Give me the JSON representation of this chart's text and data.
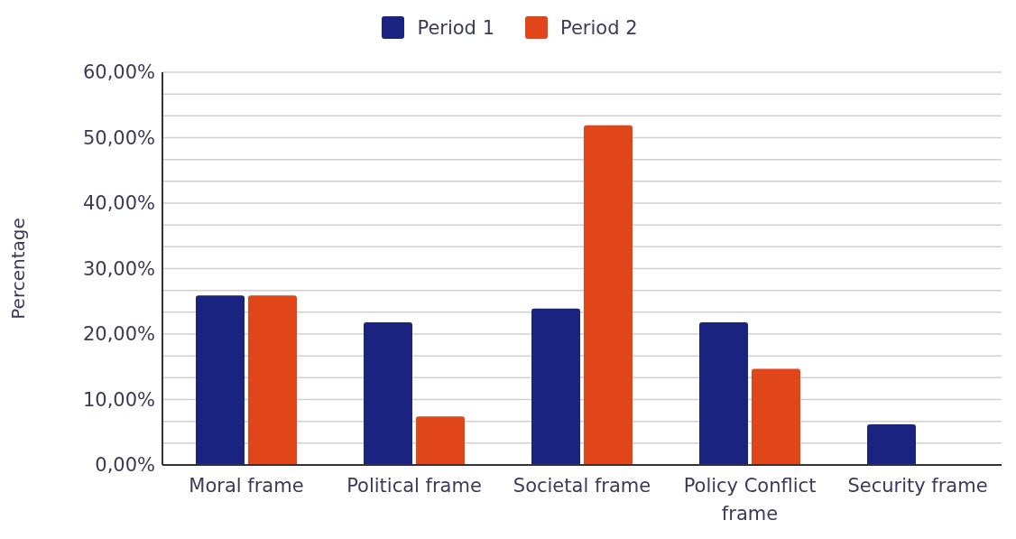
{
  "chart_data": {
    "type": "bar",
    "ylabel": "Percentage",
    "categories": [
      "Moral frame",
      "Political frame",
      "Societal frame",
      "Policy Conflict frame",
      "Security frame"
    ],
    "series": [
      {
        "name": "Period 1",
        "color": "#1b2380",
        "values": [
          25.9,
          21.8,
          23.9,
          21.8,
          6.2
        ]
      },
      {
        "name": "Period 2",
        "color": "#e0461a",
        "values": [
          25.9,
          7.4,
          51.9,
          14.7,
          0
        ]
      }
    ],
    "ylim": [
      0,
      60
    ],
    "yticks": [
      {
        "value": 0,
        "label": "0,00%"
      },
      {
        "value": 3.333,
        "label": null
      },
      {
        "value": 6.667,
        "label": null
      },
      {
        "value": 10,
        "label": "10,00%"
      },
      {
        "value": 13.333,
        "label": null
      },
      {
        "value": 16.667,
        "label": null
      },
      {
        "value": 20,
        "label": "20,00%"
      },
      {
        "value": 23.333,
        "label": null
      },
      {
        "value": 26.667,
        "label": null
      },
      {
        "value": 30,
        "label": "30,00%"
      },
      {
        "value": 33.333,
        "label": null
      },
      {
        "value": 36.667,
        "label": null
      },
      {
        "value": 40,
        "label": "40,00%"
      },
      {
        "value": 43.333,
        "label": null
      },
      {
        "value": 46.667,
        "label": null
      },
      {
        "value": 50,
        "label": "50,00%"
      },
      {
        "value": 53.333,
        "label": null
      },
      {
        "value": 56.667,
        "label": null
      },
      {
        "value": 60,
        "label": "60,00%"
      }
    ],
    "grid": "y",
    "legend": "top"
  }
}
